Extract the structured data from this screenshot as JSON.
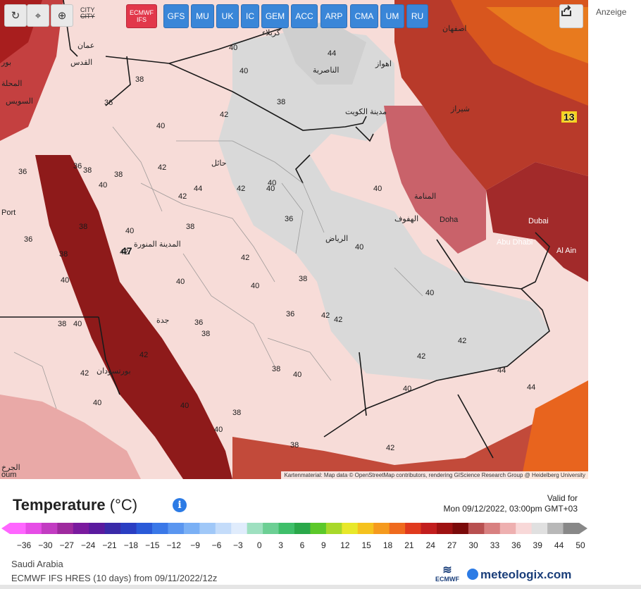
{
  "toolbar": {
    "buttons": [
      {
        "name": "refresh-button",
        "icon": "refresh-icon",
        "glyph": "↻"
      },
      {
        "name": "location-button",
        "icon": "location-pin-icon",
        "glyph": "⌖"
      },
      {
        "name": "zoom-button",
        "icon": "magnifier-icon",
        "glyph": "⊕"
      }
    ],
    "city_label_line1": "CITY",
    "city_label_line2": "CITY"
  },
  "models": [
    {
      "line1": "ECMWF",
      "line2": "IFS",
      "active": true
    },
    {
      "line1": "GFS"
    },
    {
      "line1": "MU"
    },
    {
      "line1": "UK"
    },
    {
      "line1": "IC"
    },
    {
      "line1": "GEM"
    },
    {
      "line1": "ACC"
    },
    {
      "line1": "ARP"
    },
    {
      "line1": "CMA"
    },
    {
      "line1": "UM"
    },
    {
      "line1": "RU"
    }
  ],
  "share_icon": "share-icon",
  "ad_label": "Anzeige",
  "map": {
    "attribution": "Kartenmaterial: Map data © OpenStreetMap contributors, rendering GIScience Research Group @ Heidelberg University",
    "cities": [
      "كربلاء",
      "عمان",
      "اصفهان",
      "بور",
      "القدس",
      "الناصرية",
      "اهواز",
      "المحلة",
      "السويس",
      "مدينة الكويت",
      "شيراز",
      "حائل",
      "المنامة",
      "الهفوف",
      "Doha",
      "Dubai",
      "Abu Dhabi",
      "Al Ain",
      "المدينة المنورة",
      "الرياض",
      "جدة",
      "بورتسودان",
      "Port",
      "الجرخ",
      "oum"
    ],
    "highlight_values": [
      "47",
      "13"
    ],
    "temperature_labels": [
      "40",
      "44",
      "40",
      "42",
      "38",
      "36",
      "38",
      "40",
      "42",
      "38",
      "38",
      "40",
      "42",
      "44",
      "42",
      "40",
      "36",
      "40",
      "38",
      "40",
      "42",
      "40",
      "38",
      "36",
      "42",
      "42",
      "40",
      "38",
      "40",
      "40",
      "42",
      "40",
      "40",
      "42",
      "44",
      "44",
      "42",
      "38",
      "38",
      "40",
      "42",
      "40",
      "38",
      "40",
      "36",
      "38",
      "40",
      "42",
      "42",
      "40",
      "38",
      "36",
      "36",
      "36",
      "38",
      "40"
    ]
  },
  "legend": {
    "title": "Temperature",
    "unit": "(°C)",
    "info_icon": "info-icon",
    "valid_label": "Valid for",
    "valid_time": "Mon 09/12/2022, 03:00pm GMT+03",
    "ticks": [
      "−36",
      "−30",
      "−27",
      "−24",
      "−21",
      "−18",
      "−15",
      "−12",
      "−9",
      "−6",
      "−3",
      "0",
      "3",
      "6",
      "9",
      "12",
      "15",
      "18",
      "21",
      "24",
      "27",
      "30",
      "33",
      "36",
      "39",
      "44",
      "50"
    ],
    "colors": [
      "#ff66ff",
      "#e64de6",
      "#c23cc2",
      "#9e2a9e",
      "#7a1a9e",
      "#5a1a9e",
      "#3a2aa8",
      "#2a3ec2",
      "#2a5ad8",
      "#3a78e8",
      "#5a96f0",
      "#7ab0f5",
      "#a0c8f8",
      "#c4dcfa",
      "#e0ecfc",
      "#9ee0c0",
      "#6ccf94",
      "#3fbf6a",
      "#2aa84a",
      "#5cc82a",
      "#a8d82a",
      "#e8e82a",
      "#f5c21e",
      "#f59a1e",
      "#ef6a1e",
      "#e03a1e",
      "#c21e1e",
      "#9e1212",
      "#7a0a0a",
      "#b85050",
      "#d88080",
      "#eeb0b0",
      "#f8d8d8",
      "#e0e0e0",
      "#b8b8b8",
      "#888888"
    ],
    "region": "Saudi Arabia",
    "run_info": "ECMWF IFS HRES (10 days) from 09/11/2022/12z",
    "ecmwf_logo_text": "ECMWF",
    "brand": "meteologix.com"
  }
}
